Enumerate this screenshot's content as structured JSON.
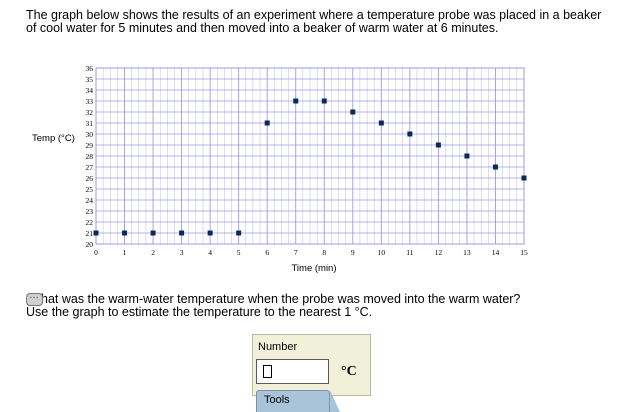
{
  "intro_text": "The graph below shows the results of an experiment where a temperature probe was placed in a beaker of cool water for 5 minutes and then moved into a beaker of warm water at 6 minutes.",
  "chart_data": {
    "type": "scatter",
    "xlabel": "Time (min)",
    "ylabel": "Temp (°C)",
    "xlim": [
      0,
      15
    ],
    "ylim": [
      20,
      36
    ],
    "grid": true,
    "x_ticks": [
      0,
      1,
      2,
      3,
      4,
      5,
      6,
      7,
      8,
      9,
      10,
      11,
      12,
      13,
      14,
      15
    ],
    "y_ticks": [
      20,
      21,
      22,
      23,
      24,
      25,
      26,
      27,
      28,
      29,
      30,
      31,
      32,
      33,
      34,
      35,
      36
    ],
    "x_minor_per_major": 4,
    "marker_color": "#0b2a5b",
    "grid_color": "#9b9be8",
    "points": [
      {
        "x": 0,
        "y": 21
      },
      {
        "x": 1,
        "y": 21
      },
      {
        "x": 2,
        "y": 21
      },
      {
        "x": 3,
        "y": 21
      },
      {
        "x": 4,
        "y": 21
      },
      {
        "x": 5,
        "y": 21
      },
      {
        "x": 6,
        "y": 31
      },
      {
        "x": 7,
        "y": 33
      },
      {
        "x": 8,
        "y": 33
      },
      {
        "x": 9,
        "y": 32
      },
      {
        "x": 10,
        "y": 31
      },
      {
        "x": 11,
        "y": 30
      },
      {
        "x": 12,
        "y": 29
      },
      {
        "x": 13,
        "y": 28
      },
      {
        "x": 14,
        "y": 27
      },
      {
        "x": 15,
        "y": 26
      }
    ]
  },
  "question": {
    "text": "What was the warm-water temperature when the probe was moved into the warm water?",
    "visible_text": "hat was the warm-water temperature when the probe was moved into the warm water?",
    "hint": "Use the graph to estimate the temperature to the nearest 1 °C.",
    "icon": "comment-icon"
  },
  "answer": {
    "label": "Number",
    "value": "",
    "unit": "°C"
  },
  "tools": {
    "label": "Tools"
  }
}
